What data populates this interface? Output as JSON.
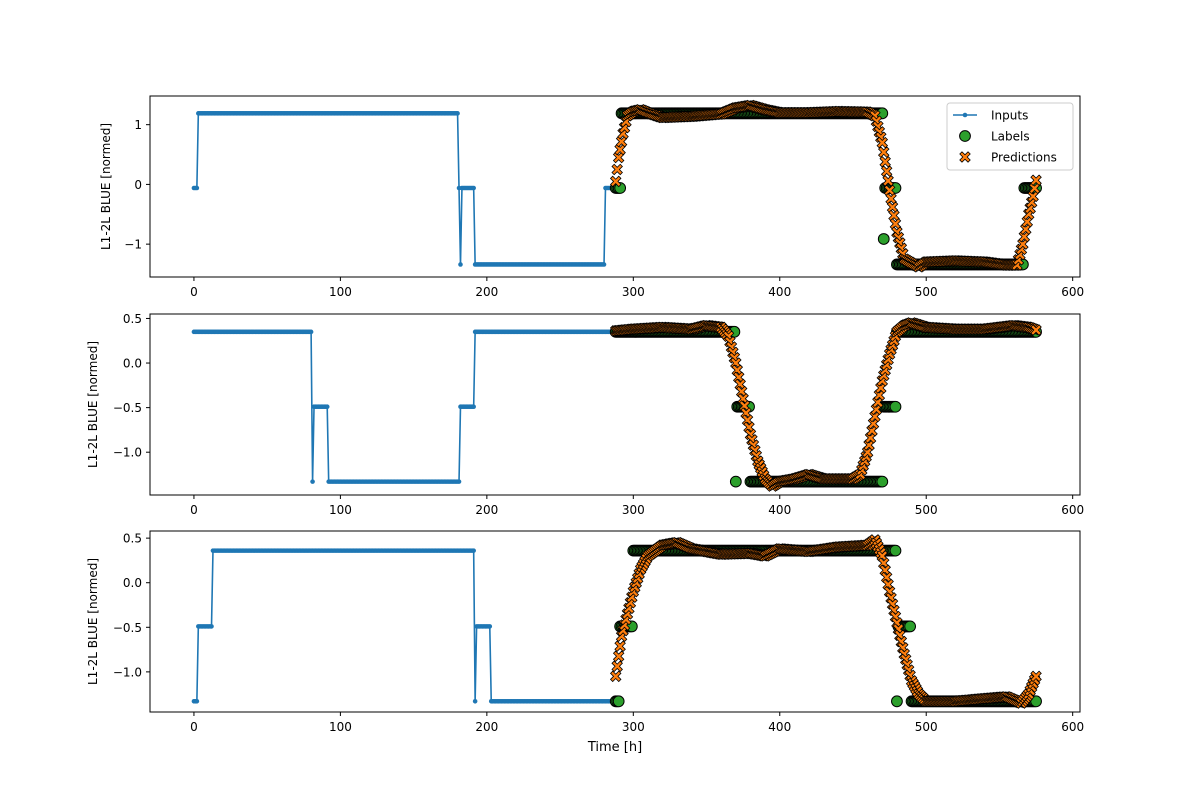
{
  "figure": {
    "xlabel": "Time [h]"
  },
  "legend": {
    "placement": "upper-right",
    "entries": [
      {
        "label": "Inputs",
        "color": "#1f77b4",
        "marker": "line-with-dot"
      },
      {
        "label": "Labels",
        "color": "#2ca02c",
        "marker": "circle"
      },
      {
        "label": "Predictions",
        "color": "#ff7f0e",
        "marker": "x"
      }
    ]
  },
  "colors": {
    "inputs": "#1f77b4",
    "labels": "#2ca02c",
    "predictions": "#ff7f0e",
    "marker_edge": "#000000"
  },
  "chart_data": [
    {
      "type": "line",
      "title": "",
      "xlabel": "",
      "ylabel": "L1-2L BLUE [normed]",
      "xlim": [
        -30,
        605
      ],
      "ylim": [
        -1.55,
        1.48
      ],
      "xticks": [
        0,
        100,
        200,
        300,
        400,
        500,
        600
      ],
      "yticks": [
        1,
        0,
        -1
      ],
      "ytick_labels": [
        "1",
        "0",
        "−1"
      ],
      "grid": false,
      "legend": true,
      "series": [
        {
          "name": "Inputs",
          "kind": "line",
          "start": 0,
          "end": 287,
          "segments": [
            [
              0,
              -0.06
            ],
            [
              2,
              -0.06
            ],
            [
              3,
              1.19
            ],
            [
              180,
              1.19
            ],
            [
              181,
              -0.06
            ],
            [
              182,
              -1.34
            ],
            [
              183,
              -0.06
            ],
            [
              191,
              -0.06
            ],
            [
              192,
              -1.34
            ],
            [
              280,
              -1.34
            ],
            [
              281,
              -0.06
            ],
            [
              287,
              -0.06
            ]
          ]
        },
        {
          "name": "Labels",
          "kind": "points",
          "start": 288,
          "end": 575,
          "segments": [
            [
              288,
              -0.06
            ],
            [
              291,
              -0.06
            ],
            [
              292,
              1.19
            ],
            [
              470,
              1.19
            ],
            [
              470.5,
              -1.34
            ],
            [
              472,
              -0.06
            ],
            [
              479,
              -0.06
            ],
            [
              480,
              -1.34
            ],
            [
              566,
              -1.34
            ],
            [
              567,
              -0.06
            ],
            [
              575,
              -0.06
            ]
          ]
        },
        {
          "name": "Predictions",
          "kind": "points",
          "start": 288,
          "end": 575,
          "segments": [
            [
              288,
              0.05
            ],
            [
              290,
              0.45
            ],
            [
              293,
              0.85
            ],
            [
              296,
              1.15
            ],
            [
              300,
              1.22
            ],
            [
              305,
              1.25
            ],
            [
              310,
              1.2
            ],
            [
              320,
              1.12
            ],
            [
              340,
              1.14
            ],
            [
              360,
              1.18
            ],
            [
              370,
              1.28
            ],
            [
              380,
              1.32
            ],
            [
              390,
              1.25
            ],
            [
              400,
              1.2
            ],
            [
              420,
              1.2
            ],
            [
              440,
              1.22
            ],
            [
              460,
              1.21
            ],
            [
              465,
              1.15
            ],
            [
              470,
              0.7
            ],
            [
              475,
              -0.1
            ],
            [
              480,
              -0.8
            ],
            [
              485,
              -1.25
            ],
            [
              490,
              -1.32
            ],
            [
              495,
              -1.38
            ],
            [
              500,
              -1.3
            ],
            [
              520,
              -1.28
            ],
            [
              540,
              -1.3
            ],
            [
              555,
              -1.35
            ],
            [
              562,
              -1.35
            ],
            [
              566,
              -1.0
            ],
            [
              570,
              -0.5
            ],
            [
              573,
              -0.2
            ],
            [
              575,
              0.07
            ]
          ]
        }
      ]
    },
    {
      "type": "line",
      "title": "",
      "xlabel": "",
      "ylabel": "L1-2L BLUE [normed]",
      "xlim": [
        -30,
        605
      ],
      "ylim": [
        -1.48,
        0.55
      ],
      "xticks": [
        0,
        100,
        200,
        300,
        400,
        500,
        600
      ],
      "yticks": [
        0.5,
        0.0,
        -0.5,
        -1.0
      ],
      "ytick_labels": [
        "0.5",
        "0.0",
        "−0.5",
        "−1.0"
      ],
      "grid": false,
      "legend": false,
      "series": [
        {
          "name": "Inputs",
          "kind": "line",
          "start": 0,
          "end": 287,
          "segments": [
            [
              0,
              0.35
            ],
            [
              80,
              0.35
            ],
            [
              81,
              -1.33
            ],
            [
              82,
              -0.49
            ],
            [
              91,
              -0.49
            ],
            [
              92,
              -1.33
            ],
            [
              181,
              -1.33
            ],
            [
              182,
              -0.49
            ],
            [
              191,
              -0.49
            ],
            [
              192,
              0.35
            ],
            [
              287,
              0.35
            ]
          ]
        },
        {
          "name": "Labels",
          "kind": "points",
          "start": 288,
          "end": 575,
          "segments": [
            [
              288,
              0.35
            ],
            [
              369,
              0.35
            ],
            [
              370,
              -1.33
            ],
            [
              371,
              -0.49
            ],
            [
              379,
              -0.49
            ],
            [
              380,
              -1.33
            ],
            [
              470,
              -1.33
            ],
            [
              471,
              -0.49
            ],
            [
              479,
              -0.49
            ],
            [
              480,
              0.35
            ],
            [
              575,
              0.35
            ]
          ]
        },
        {
          "name": "Predictions",
          "kind": "points",
          "start": 288,
          "end": 575,
          "segments": [
            [
              288,
              0.36
            ],
            [
              300,
              0.38
            ],
            [
              320,
              0.4
            ],
            [
              340,
              0.38
            ],
            [
              350,
              0.42
            ],
            [
              360,
              0.4
            ],
            [
              365,
              0.3
            ],
            [
              370,
              0.0
            ],
            [
              375,
              -0.4
            ],
            [
              380,
              -0.8
            ],
            [
              385,
              -1.1
            ],
            [
              390,
              -1.3
            ],
            [
              395,
              -1.38
            ],
            [
              400,
              -1.33
            ],
            [
              410,
              -1.3
            ],
            [
              420,
              -1.25
            ],
            [
              430,
              -1.3
            ],
            [
              450,
              -1.3
            ],
            [
              455,
              -1.25
            ],
            [
              460,
              -1.0
            ],
            [
              465,
              -0.6
            ],
            [
              470,
              -0.2
            ],
            [
              475,
              0.1
            ],
            [
              480,
              0.35
            ],
            [
              485,
              0.42
            ],
            [
              490,
              0.45
            ],
            [
              500,
              0.4
            ],
            [
              520,
              0.38
            ],
            [
              540,
              0.38
            ],
            [
              560,
              0.42
            ],
            [
              570,
              0.4
            ],
            [
              575,
              0.37
            ]
          ]
        }
      ]
    },
    {
      "type": "line",
      "title": "",
      "xlabel": "Time [h]",
      "ylabel": "L1-2L BLUE [normed]",
      "xlim": [
        -30,
        605
      ],
      "ylim": [
        -1.45,
        0.58
      ],
      "xticks": [
        0,
        100,
        200,
        300,
        400,
        500,
        600
      ],
      "yticks": [
        0.5,
        0.0,
        -0.5,
        -1.0
      ],
      "ytick_labels": [
        "0.5",
        "0.0",
        "−0.5",
        "−1.0"
      ],
      "grid": false,
      "legend": false,
      "series": [
        {
          "name": "Inputs",
          "kind": "line",
          "start": 0,
          "end": 287,
          "segments": [
            [
              0,
              -1.33
            ],
            [
              2,
              -1.33
            ],
            [
              3,
              -0.49
            ],
            [
              12,
              -0.49
            ],
            [
              13,
              0.36
            ],
            [
              191,
              0.36
            ],
            [
              192,
              -1.33
            ],
            [
              193,
              -0.49
            ],
            [
              202,
              -0.49
            ],
            [
              203,
              -1.33
            ],
            [
              287,
              -1.33
            ]
          ]
        },
        {
          "name": "Labels",
          "kind": "points",
          "start": 288,
          "end": 575,
          "segments": [
            [
              288,
              -1.33
            ],
            [
              290,
              -1.33
            ],
            [
              291,
              -0.49
            ],
            [
              299,
              -0.49
            ],
            [
              300,
              0.36
            ],
            [
              479,
              0.36
            ],
            [
              480,
              -1.33
            ],
            [
              481,
              -0.49
            ],
            [
              489,
              -0.49
            ],
            [
              490,
              -1.33
            ],
            [
              575,
              -1.33
            ]
          ]
        },
        {
          "name": "Predictions",
          "kind": "points",
          "start": 288,
          "end": 575,
          "segments": [
            [
              288,
              -1.05
            ],
            [
              292,
              -0.6
            ],
            [
              296,
              -0.35
            ],
            [
              300,
              -0.1
            ],
            [
              305,
              0.15
            ],
            [
              310,
              0.3
            ],
            [
              320,
              0.42
            ],
            [
              330,
              0.45
            ],
            [
              340,
              0.38
            ],
            [
              360,
              0.32
            ],
            [
              380,
              0.33
            ],
            [
              390,
              0.3
            ],
            [
              400,
              0.38
            ],
            [
              420,
              0.35
            ],
            [
              440,
              0.4
            ],
            [
              460,
              0.42
            ],
            [
              465,
              0.48
            ],
            [
              470,
              0.3
            ],
            [
              475,
              -0.1
            ],
            [
              480,
              -0.45
            ],
            [
              485,
              -0.8
            ],
            [
              490,
              -1.1
            ],
            [
              495,
              -1.25
            ],
            [
              500,
              -1.33
            ],
            [
              520,
              -1.33
            ],
            [
              540,
              -1.3
            ],
            [
              555,
              -1.28
            ],
            [
              565,
              -1.35
            ],
            [
              570,
              -1.25
            ],
            [
              575,
              -1.05
            ]
          ]
        }
      ]
    }
  ]
}
